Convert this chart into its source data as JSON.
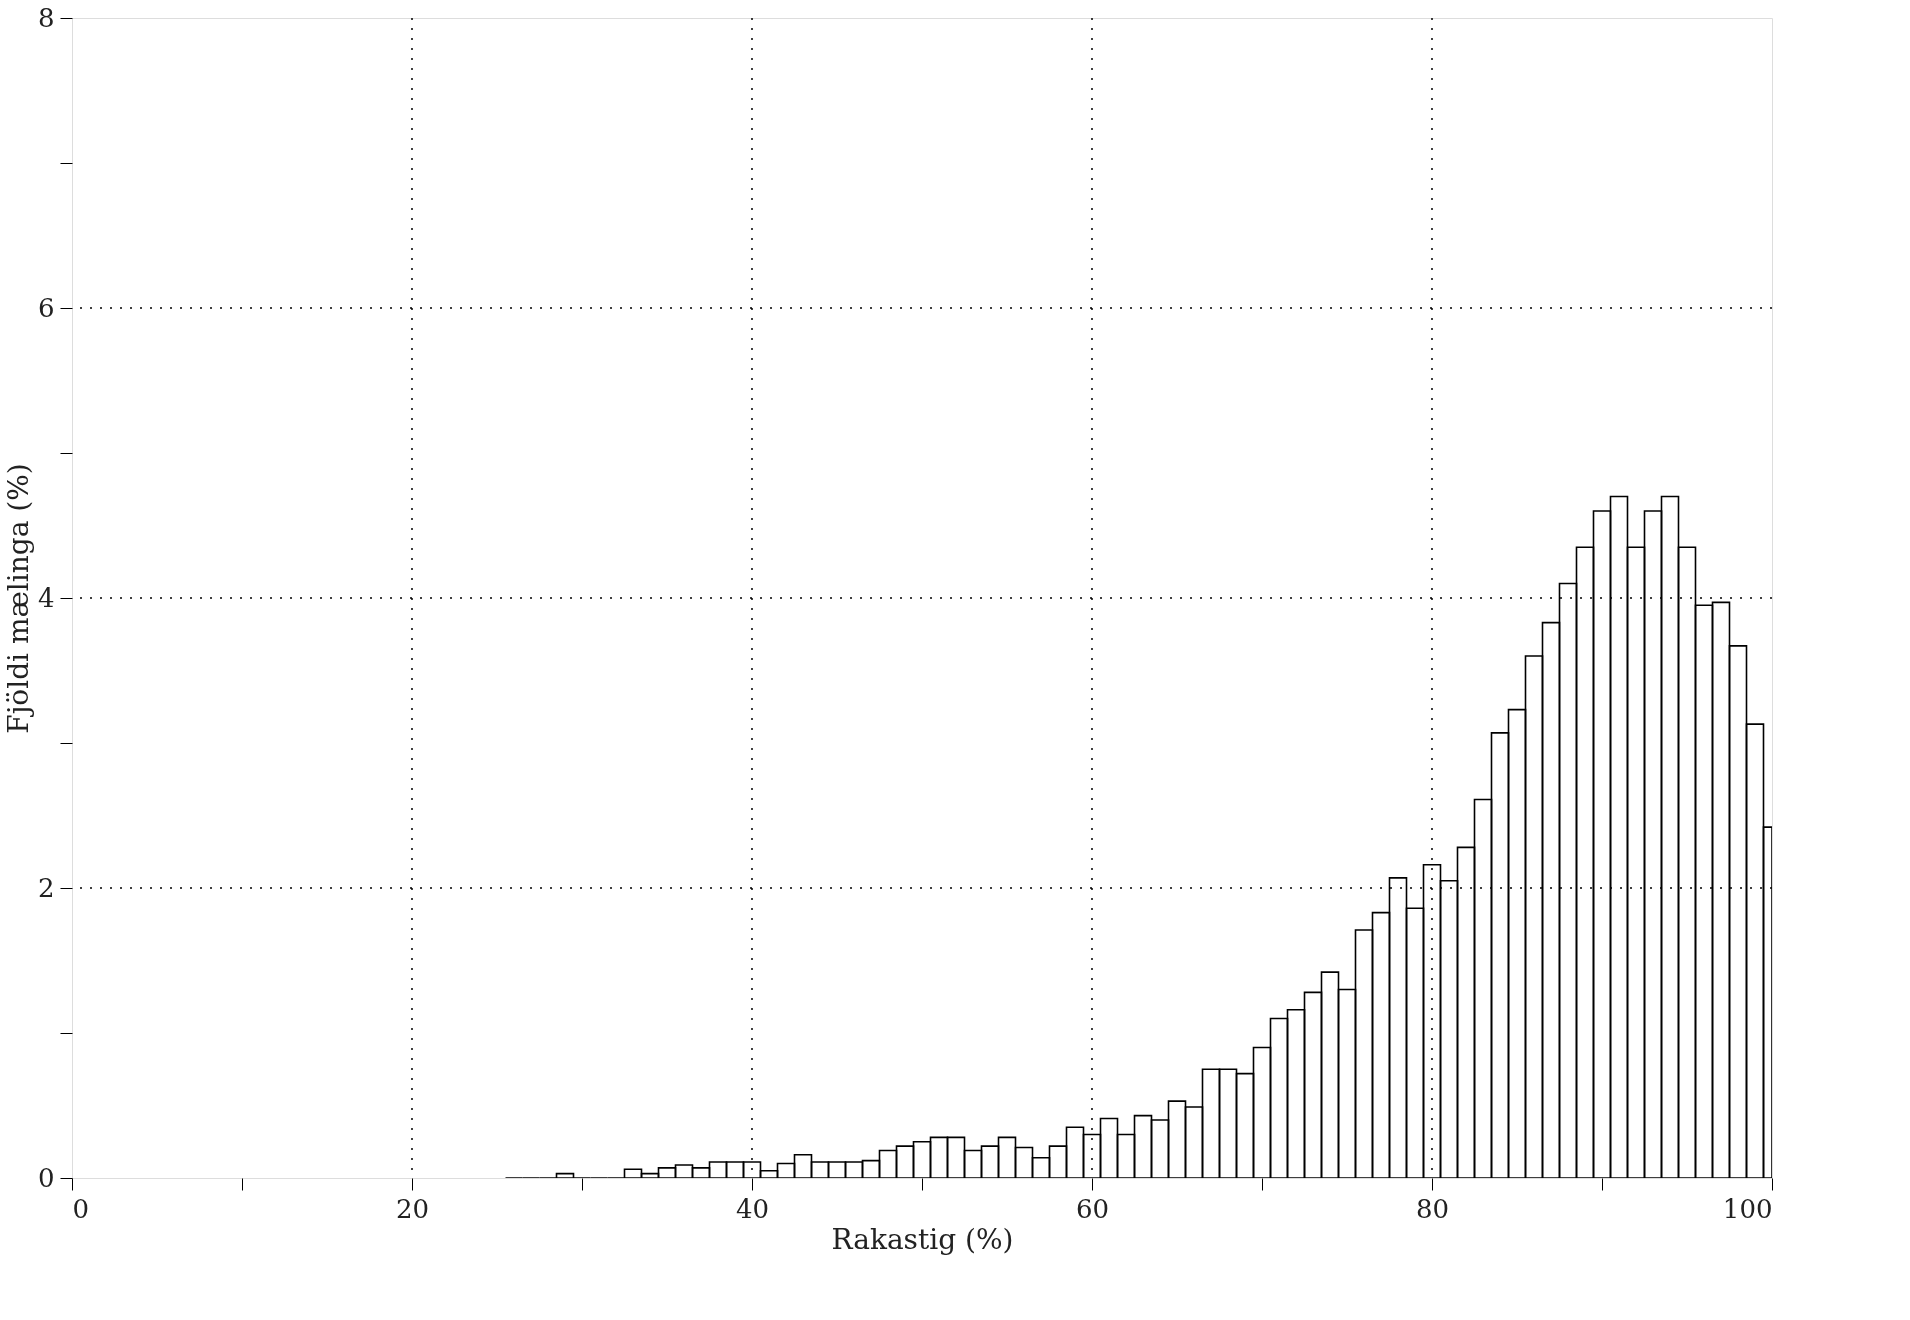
{
  "chart_data": {
    "type": "histogram",
    "xlabel": "Rakastig (%)",
    "ylabel": "Fjöldi mælinga (%)",
    "bins": [
      25.5,
      26.5,
      27.5,
      28.5,
      29.5,
      30.5,
      31.5,
      32.5,
      33.5,
      34.5,
      35.5,
      36.5,
      37.5,
      38.5,
      39.5,
      40.5,
      41.5,
      42.5,
      43.5,
      44.5,
      45.5,
      46.5,
      47.5,
      48.5,
      49.5,
      50.5,
      51.5,
      52.5,
      53.5,
      54.5,
      55.5,
      56.5,
      57.5,
      58.5,
      59.5,
      60.5,
      61.5,
      62.5,
      63.5,
      64.5,
      65.5,
      66.5,
      67.5,
      68.5,
      69.5,
      70.5,
      71.5,
      72.5,
      73.5,
      74.5,
      75.5,
      76.5,
      77.5,
      78.5,
      79.5,
      80.5,
      81.5,
      82.5,
      83.5,
      84.5,
      85.5,
      86.5,
      87.5,
      88.5,
      89.5,
      90.5,
      91.5,
      92.5,
      93.5,
      94.5,
      95.5,
      96.5,
      97.5,
      98.5,
      99.5,
      100
    ],
    "values": [
      0,
      0,
      0,
      0.03,
      0,
      0,
      0,
      0.06,
      0.03,
      0.07,
      0.09,
      0.07,
      0.11,
      0.11,
      0.11,
      0.05,
      0.1,
      0.16,
      0.11,
      0.11,
      0.11,
      0.12,
      0.19,
      0.22,
      0.25,
      0.28,
      0.28,
      0.19,
      0.22,
      0.28,
      0.21,
      0.14,
      0.22,
      0.35,
      0.3,
      0.41,
      0.3,
      0.43,
      0.4,
      0.53,
      0.49,
      0.75,
      0.75,
      0.72,
      0.9,
      1.1,
      1.16,
      1.28,
      1.42,
      1.3,
      1.71,
      1.83,
      2.07,
      1.86,
      2.16,
      2.05,
      2.28,
      2.61,
      3.07,
      3.23,
      3.6,
      3.83,
      4.1,
      4.35,
      4.6,
      4.7,
      4.35,
      4.6,
      4.7,
      4.35,
      3.95,
      3.97,
      3.67,
      3.13,
      2.42
    ],
    "color": "#000000",
    "xlim": [
      0,
      100
    ],
    "ylim": [
      0,
      8
    ],
    "xticks": [
      0,
      {
        "value": 10,
        "label": null
      },
      20,
      {
        "value": 30,
        "label": null
      },
      40,
      {
        "value": 50,
        "label": null
      },
      60,
      {
        "value": 70,
        "label": null
      },
      80,
      {
        "value": 90,
        "label": null
      },
      100
    ],
    "yticks": [
      0,
      {
        "value": 1,
        "label": null
      },
      2,
      {
        "value": 3,
        "label": null
      },
      4,
      {
        "value": 5,
        "label": null
      },
      6,
      {
        "value": 7,
        "label": null
      },
      8
    ],
    "grid": true
  }
}
